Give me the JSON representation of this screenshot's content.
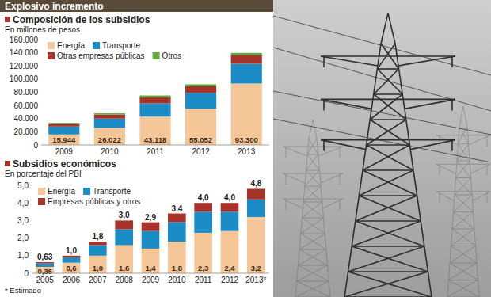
{
  "header": {
    "title": "Explosivo incremento"
  },
  "chart_data": [
    {
      "type": "bar",
      "stacked": true,
      "title": "Composición de los subsidios",
      "subtitle": "En millones de pesos",
      "categories": [
        "2009",
        "2010",
        "2011",
        "2012",
        "2013"
      ],
      "series": [
        {
          "name": "Energía",
          "color": "#f5c698",
          "values": [
            15944,
            26022,
            43118,
            55052,
            93300
          ],
          "data_labels": true,
          "value_labels": [
            "15.944",
            "26.022",
            "43.118",
            "55.052",
            "93.300"
          ]
        },
        {
          "name": "Transporte",
          "color": "#1b8cc6",
          "values": [
            12000,
            14000,
            20000,
            24000,
            30000
          ]
        },
        {
          "name": "Otras empresas públicas",
          "color": "#a8332a",
          "values": [
            4000,
            6000,
            9000,
            10000,
            13000
          ]
        },
        {
          "name": "Otros",
          "color": "#62a83d",
          "values": [
            1500,
            2000,
            3000,
            3000,
            3500
          ]
        }
      ],
      "ylim": [
        0,
        160000
      ],
      "yticks": [
        0,
        {
          "value": 20000,
          "label": "20.000"
        },
        {
          "value": 40000,
          "label": "40.000"
        },
        {
          "value": 60000,
          "label": "60.000"
        },
        {
          "value": 80000,
          "label": "80.000"
        },
        {
          "value": 100000,
          "label": "100.000"
        },
        {
          "value": 120000,
          "label": "120.000"
        },
        {
          "value": 140000,
          "label": "140.000"
        },
        {
          "value": 160000,
          "label": "160.000"
        }
      ],
      "grid": false,
      "legend": "top-left"
    },
    {
      "type": "bar",
      "stacked": true,
      "title": "Subsidios económicos",
      "subtitle": "En porcentaje del PBI",
      "categories": [
        "2005",
        "2006",
        "2007",
        "2008",
        "2009",
        "2010",
        "2011",
        "2012",
        "2013*"
      ],
      "series": [
        {
          "name": "Energía",
          "color": "#f5c698",
          "values": [
            0.36,
            0.6,
            1.0,
            1.6,
            1.4,
            1.8,
            2.3,
            2.4,
            3.2
          ],
          "data_labels": true,
          "value_labels": [
            "0,36",
            "0,6",
            "1,0",
            "1,6",
            "1,4",
            "1,8",
            "2,3",
            "2,4",
            "3,2"
          ]
        },
        {
          "name": "Transporte",
          "color": "#1b8cc6",
          "values": [
            0.2,
            0.3,
            0.6,
            0.9,
            1.0,
            1.1,
            1.2,
            1.1,
            1.0
          ]
        },
        {
          "name": "Empresas públicas y otros",
          "color": "#a8332a",
          "values": [
            0.07,
            0.1,
            0.2,
            0.5,
            0.5,
            0.5,
            0.5,
            0.5,
            0.6
          ]
        }
      ],
      "totals": [
        0.63,
        1.0,
        1.8,
        3.0,
        2.9,
        3.4,
        4.0,
        4.0,
        4.8
      ],
      "total_labels": [
        "0,63",
        "1,0",
        "1,8",
        "3,0",
        "2,9",
        "3,4",
        "4,0",
        "4,0",
        "4,8"
      ],
      "ylim": [
        0,
        5
      ],
      "yticks": [
        0,
        {
          "value": 1,
          "label": "1,0"
        },
        {
          "value": 2,
          "label": "2,0"
        },
        {
          "value": 3,
          "label": "3,0"
        },
        {
          "value": 4,
          "label": "4,0"
        },
        {
          "value": 5,
          "label": "5,0"
        }
      ],
      "grid": false,
      "legend": "top-left",
      "note": "* Estimado"
    }
  ]
}
